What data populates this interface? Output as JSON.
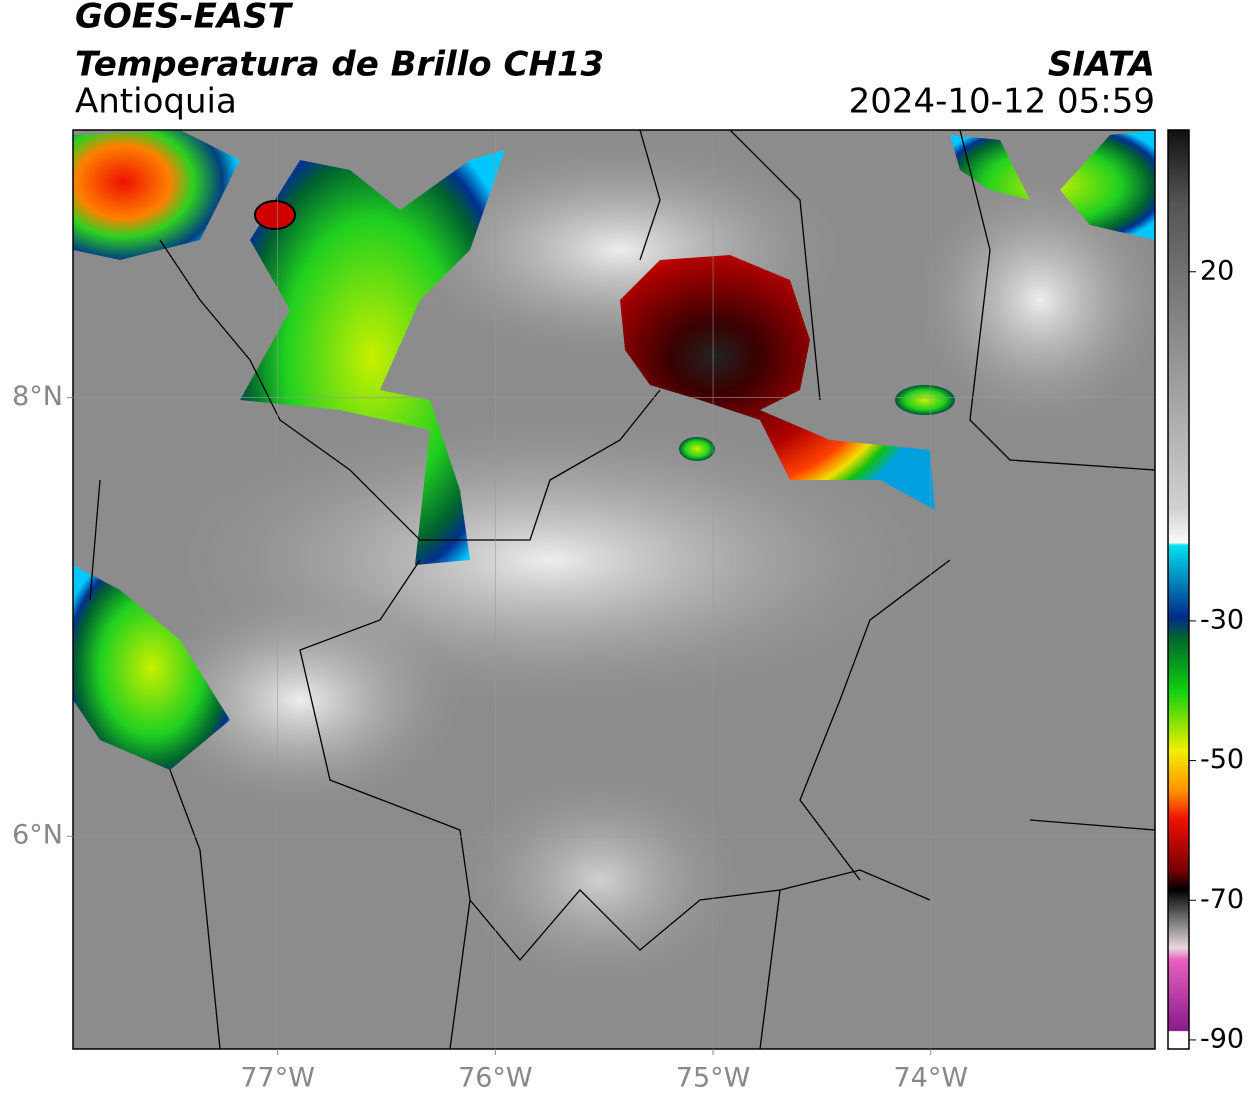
{
  "header": {
    "title": "GOES-EAST",
    "subtitle": "Temperatura de Brillo CH13",
    "region": "Antioquia",
    "source": "SIATA",
    "datetime": "2024-10-12 05:59"
  },
  "map": {
    "xlim": [
      -77.94,
      -72.97
    ],
    "ylim": [
      5.03,
      9.22
    ],
    "xticks": [
      {
        "value": -77,
        "label": "77°W"
      },
      {
        "value": -76,
        "label": "76°W"
      },
      {
        "value": -75,
        "label": "75°W"
      },
      {
        "value": -74,
        "label": "74°W"
      }
    ],
    "yticks": [
      {
        "value": 8,
        "label": "8°N"
      },
      {
        "value": 6,
        "label": "6°N"
      }
    ],
    "grid": true
  },
  "colorbar": {
    "lim": [
      -91.3,
      40.3
    ],
    "ticks": [
      20,
      -30,
      -50,
      -70,
      -90
    ]
  }
}
